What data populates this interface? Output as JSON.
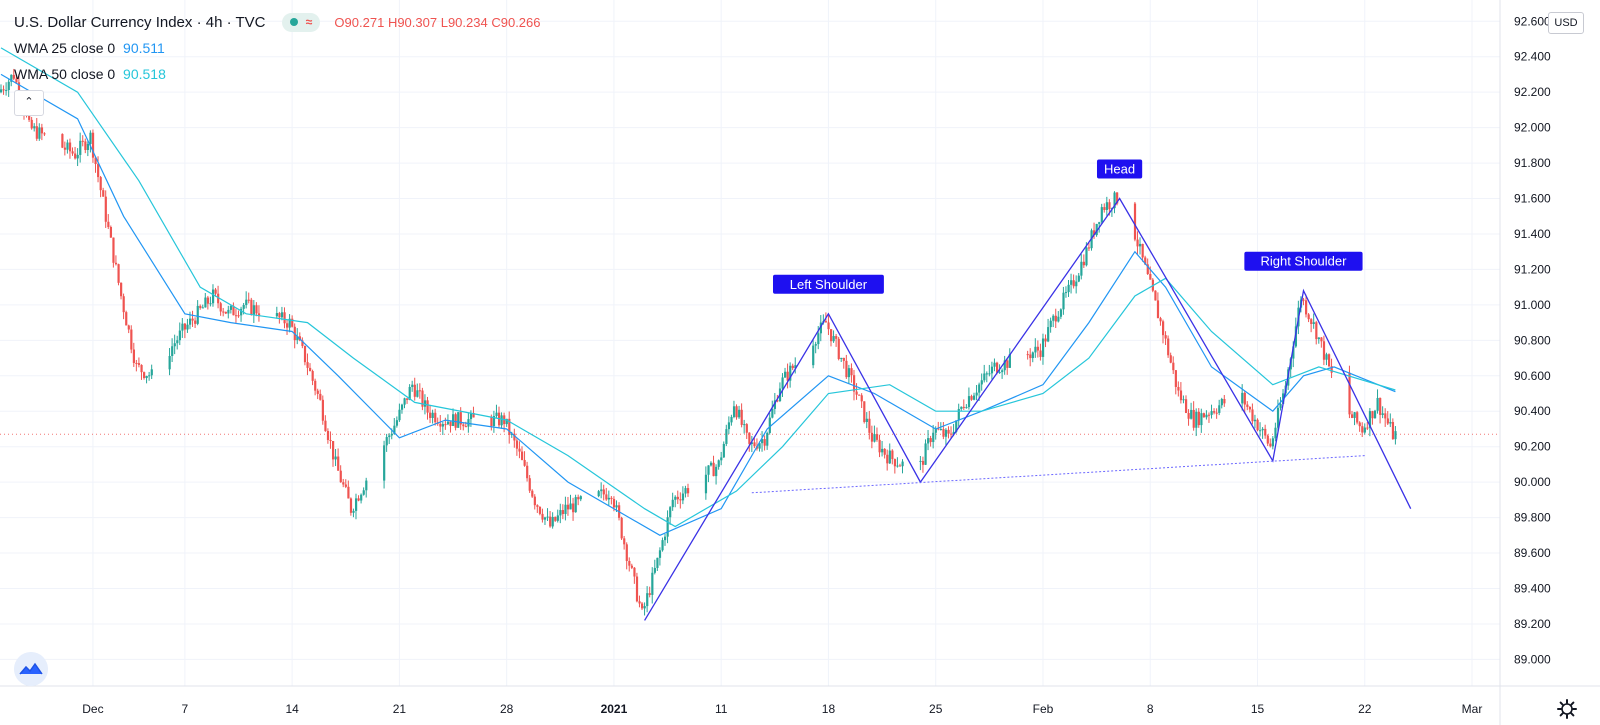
{
  "legend": {
    "symbol": "U.S. Dollar Currency Index · 4h · TVC",
    "o_label": "O",
    "o_value": "90.271",
    "h_label": "H",
    "h_value": "90.307",
    "l_label": "L",
    "l_value": "90.234",
    "c_label": "C",
    "c_value": "90.266",
    "approx_sign": "≈",
    "ma1_label": "WMA 25 close 0",
    "ma1_value": "90.511",
    "ma2_label": "WMA 50 close 0",
    "ma2_value": "90.518"
  },
  "toolbar": {
    "collapse_label": "⌃",
    "currency_label": "USD"
  },
  "colors": {
    "up": "#26a69a",
    "down": "#ef5350",
    "ma1": "#2196f3",
    "ma2": "#26c6da",
    "pattern": "#3a32e6",
    "neckline": "#6b67ff",
    "label_bg": "#1e10f0"
  },
  "icons": {
    "logo": "tradingview-logo-icon",
    "settings": "gear-icon"
  },
  "chart_data": {
    "type": "candlestick",
    "title": "U.S. Dollar Currency Index",
    "timeframe": "4h",
    "source": "TVC",
    "y_scale": "linear",
    "ylim": [
      88.85,
      92.72
    ],
    "y_ticks": [
      89.0,
      89.2,
      89.4,
      89.6,
      89.8,
      90.0,
      90.2,
      90.4,
      90.6,
      90.8,
      91.0,
      91.2,
      91.4,
      91.6,
      91.8,
      92.0,
      92.2,
      92.4,
      92.6
    ],
    "y_tick_labels": [
      "89.000",
      "89.200",
      "89.400",
      "89.600",
      "89.800",
      "90.000",
      "90.200",
      "90.400",
      "90.600",
      "90.800",
      "91.000",
      "91.200",
      "91.400",
      "91.600",
      "91.800",
      "92.000",
      "92.200",
      "92.400",
      "92.600"
    ],
    "x_tick_labels": [
      "Dec",
      "7",
      "14",
      "21",
      "28",
      "2021",
      "11",
      "18",
      "25",
      "Feb",
      "8",
      "15",
      "22",
      "Mar"
    ],
    "x_tick_dates": [
      "2020-12-01",
      "2020-12-07",
      "2020-12-14",
      "2020-12-21",
      "2020-12-28",
      "2021-01-04",
      "2021-01-11",
      "2021-01-18",
      "2021-01-25",
      "2021-02-01",
      "2021-02-08",
      "2021-02-15",
      "2021-02-22",
      "2021-03-01"
    ],
    "price_path": [
      [
        "2020-11-25",
        92.2
      ],
      [
        "2020-11-26",
        92.3
      ],
      [
        "2020-11-27",
        92.0
      ],
      [
        "2020-11-30",
        91.85
      ],
      [
        "2020-12-01",
        91.95
      ],
      [
        "2020-12-02",
        91.5
      ],
      [
        "2020-12-03",
        91.05
      ],
      [
        "2020-12-04",
        90.65
      ],
      [
        "2020-12-05",
        90.6
      ],
      [
        "2020-12-07",
        90.85
      ],
      [
        "2020-12-08",
        90.95
      ],
      [
        "2020-12-09",
        91.05
      ],
      [
        "2020-12-10",
        90.95
      ],
      [
        "2020-12-11",
        91.0
      ],
      [
        "2020-12-14",
        90.9
      ],
      [
        "2020-12-15",
        90.7
      ],
      [
        "2020-12-16",
        90.45
      ],
      [
        "2020-12-17",
        90.1
      ],
      [
        "2020-12-18",
        89.85
      ],
      [
        "2020-12-21",
        90.35
      ],
      [
        "2020-12-22",
        90.55
      ],
      [
        "2020-12-23",
        90.4
      ],
      [
        "2020-12-24",
        90.35
      ],
      [
        "2020-12-28",
        90.35
      ],
      [
        "2020-12-29",
        90.15
      ],
      [
        "2020-12-30",
        89.9
      ],
      [
        "2020-12-31",
        89.75
      ],
      [
        "2021-01-01",
        89.85
      ],
      [
        "2021-01-04",
        89.95
      ],
      [
        "2021-01-05",
        89.6
      ],
      [
        "2021-01-06",
        89.25
      ],
      [
        "2021-01-07",
        89.55
      ],
      [
        "2021-01-08",
        89.9
      ],
      [
        "2021-01-11",
        90.1
      ],
      [
        "2021-01-12",
        90.45
      ],
      [
        "2021-01-13",
        90.2
      ],
      [
        "2021-01-14",
        90.25
      ],
      [
        "2021-01-15",
        90.55
      ],
      [
        "2021-01-18",
        90.9
      ],
      [
        "2021-01-19",
        90.7
      ],
      [
        "2021-01-20",
        90.5
      ],
      [
        "2021-01-21",
        90.25
      ],
      [
        "2021-01-22",
        90.15
      ],
      [
        "2021-01-24",
        90.05
      ],
      [
        "2021-01-25",
        90.3
      ],
      [
        "2021-01-26",
        90.25
      ],
      [
        "2021-01-27",
        90.45
      ],
      [
        "2021-01-28",
        90.55
      ],
      [
        "2021-01-29",
        90.65
      ],
      [
        "2021-02-01",
        90.75
      ],
      [
        "2021-02-02",
        90.95
      ],
      [
        "2021-02-03",
        91.1
      ],
      [
        "2021-02-04",
        91.3
      ],
      [
        "2021-02-05",
        91.55
      ],
      [
        "2021-02-06",
        91.6
      ],
      [
        "2021-02-07",
        91.45
      ],
      [
        "2021-02-08",
        91.15
      ],
      [
        "2021-02-09",
        90.85
      ],
      [
        "2021-02-10",
        90.5
      ],
      [
        "2021-02-11",
        90.35
      ],
      [
        "2021-02-12",
        90.4
      ],
      [
        "2021-02-14",
        90.5
      ],
      [
        "2021-02-15",
        90.35
      ],
      [
        "2021-02-16",
        90.2
      ],
      [
        "2021-02-17",
        90.55
      ],
      [
        "2021-02-18",
        91.05
      ],
      [
        "2021-02-19",
        90.85
      ],
      [
        "2021-02-20",
        90.6
      ],
      [
        "2021-02-21",
        90.4
      ],
      [
        "2021-02-22",
        90.3
      ],
      [
        "2021-02-23",
        90.45
      ],
      [
        "2021-02-24",
        90.27
      ]
    ],
    "wma25_path": [
      [
        "2020-11-25",
        92.3
      ],
      [
        "2020-11-30",
        92.05
      ],
      [
        "2020-12-03",
        91.5
      ],
      [
        "2020-12-07",
        90.95
      ],
      [
        "2020-12-10",
        90.9
      ],
      [
        "2020-12-14",
        90.85
      ],
      [
        "2020-12-17",
        90.6
      ],
      [
        "2020-12-21",
        90.25
      ],
      [
        "2020-12-24",
        90.35
      ],
      [
        "2020-12-28",
        90.3
      ],
      [
        "2021-01-01",
        90.0
      ],
      [
        "2021-01-05",
        89.8
      ],
      [
        "2021-01-07",
        89.7
      ],
      [
        "2021-01-11",
        89.85
      ],
      [
        "2021-01-14",
        90.3
      ],
      [
        "2021-01-18",
        90.6
      ],
      [
        "2021-01-21",
        90.5
      ],
      [
        "2021-01-25",
        90.3
      ],
      [
        "2021-01-28",
        90.4
      ],
      [
        "2021-02-01",
        90.55
      ],
      [
        "2021-02-04",
        90.9
      ],
      [
        "2021-02-07",
        91.3
      ],
      [
        "2021-02-09",
        91.1
      ],
      [
        "2021-02-12",
        90.65
      ],
      [
        "2021-02-16",
        90.4
      ],
      [
        "2021-02-18",
        90.6
      ],
      [
        "2021-02-20",
        90.65
      ],
      [
        "2021-02-24",
        90.51
      ]
    ],
    "wma50_path": [
      [
        "2020-11-25",
        92.45
      ],
      [
        "2020-11-30",
        92.2
      ],
      [
        "2020-12-04",
        91.7
      ],
      [
        "2020-12-08",
        91.1
      ],
      [
        "2020-12-11",
        90.95
      ],
      [
        "2020-12-15",
        90.9
      ],
      [
        "2020-12-18",
        90.7
      ],
      [
        "2020-12-22",
        90.45
      ],
      [
        "2020-12-28",
        90.35
      ],
      [
        "2021-01-01",
        90.15
      ],
      [
        "2021-01-06",
        89.85
      ],
      [
        "2021-01-08",
        89.75
      ],
      [
        "2021-01-12",
        89.95
      ],
      [
        "2021-01-15",
        90.2
      ],
      [
        "2021-01-18",
        90.5
      ],
      [
        "2021-01-22",
        90.55
      ],
      [
        "2021-01-25",
        90.4
      ],
      [
        "2021-01-28",
        90.4
      ],
      [
        "2021-02-01",
        90.5
      ],
      [
        "2021-02-04",
        90.7
      ],
      [
        "2021-02-07",
        91.05
      ],
      [
        "2021-02-09",
        91.15
      ],
      [
        "2021-02-12",
        90.85
      ],
      [
        "2021-02-16",
        90.55
      ],
      [
        "2021-02-19",
        90.65
      ],
      [
        "2021-02-24",
        90.52
      ]
    ],
    "pattern_zigzag": [
      [
        "2021-01-06",
        89.22
      ],
      [
        "2021-01-18",
        90.95
      ],
      [
        "2021-01-24",
        90.0
      ],
      [
        "2021-02-06",
        91.6
      ],
      [
        "2021-02-16",
        90.12
      ],
      [
        "2021-02-18",
        91.08
      ],
      [
        "2021-02-25",
        89.85
      ]
    ],
    "neckline": [
      [
        "2021-01-13",
        89.94
      ],
      [
        "2021-02-22",
        90.15
      ]
    ],
    "current_price_line": 90.27,
    "annotations": [
      {
        "text": "Left Shoulder",
        "date": "2021-01-18",
        "value": 90.95
      },
      {
        "text": "Head",
        "date": "2021-02-06",
        "value": 91.6
      },
      {
        "text": "Right Shoulder",
        "date": "2021-02-18",
        "value": 91.08
      }
    ]
  }
}
